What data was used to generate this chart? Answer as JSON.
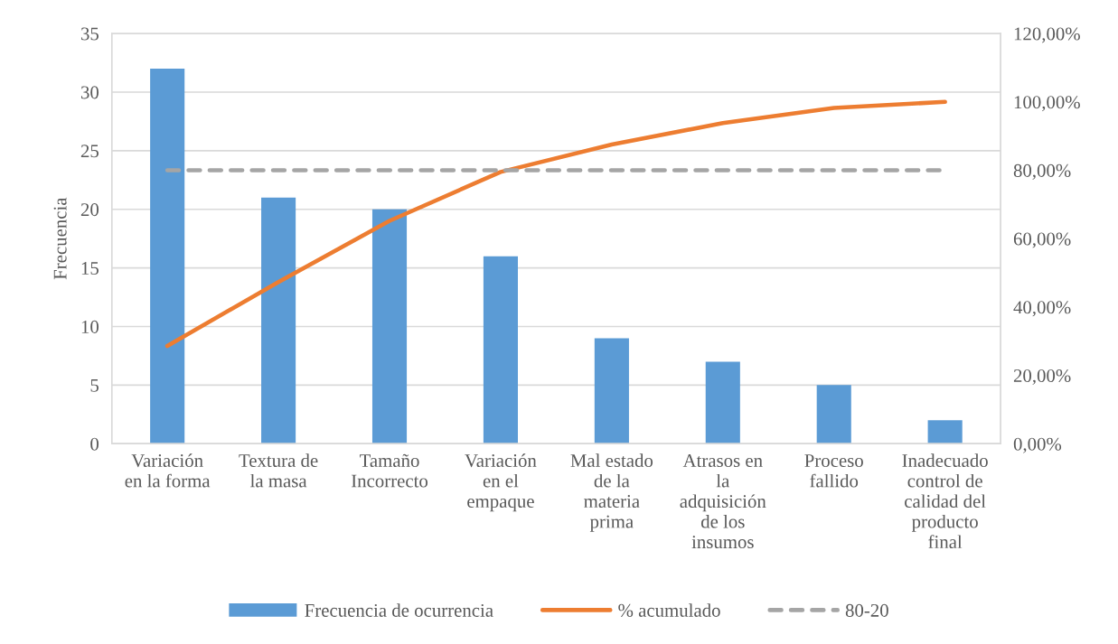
{
  "chart_data": {
    "type": "bar",
    "categories": [
      "Variación\nen la forma",
      "Textura de\nla masa",
      "Tamaño\nIncorrecto",
      "Variación\nen el\nempaque",
      "Mal estado\nde la\nmateria\nprima",
      "Atrasos en\nla\nadquisición\nde los\ninsumos",
      "Proceso\nfallido",
      "Inadecuado\ncontrol de\ncalidad del\nproducto\nfinal"
    ],
    "series": [
      {
        "name": "Frecuencia de ocurrencia",
        "color": "#5b9bd5",
        "values": [
          32,
          21,
          20,
          16,
          9,
          7,
          5,
          2
        ]
      },
      {
        "name": "% acumulado",
        "type": "line",
        "axis": "y2",
        "color": "#ed7d31",
        "line_style": "solid",
        "values": [
          28.6,
          47.3,
          65.2,
          79.5,
          87.5,
          93.8,
          98.2,
          100
        ]
      },
      {
        "name": "80-20",
        "type": "line",
        "axis": "y2",
        "color": "#a5a5a5",
        "line_style": "dashed",
        "values": [
          80,
          80,
          80,
          80,
          80,
          80,
          80,
          80
        ]
      }
    ],
    "ylabel": "Frecuencia",
    "ylim": [
      0,
      35
    ],
    "yticks": [
      0,
      5,
      10,
      15,
      20,
      25,
      30,
      35
    ],
    "y2lim": [
      0,
      120
    ],
    "y2ticks": [
      {
        "value": 0,
        "label": "0,00%"
      },
      {
        "value": 20,
        "label": "20,00%"
      },
      {
        "value": 40,
        "label": "40,00%"
      },
      {
        "value": 60,
        "label": "60,00%"
      },
      {
        "value": 80,
        "label": "80,00%"
      },
      {
        "value": 100,
        "label": "100,00%"
      },
      {
        "value": 120,
        "label": "120,00%"
      }
    ],
    "grid": "y",
    "legend": "bottom"
  }
}
